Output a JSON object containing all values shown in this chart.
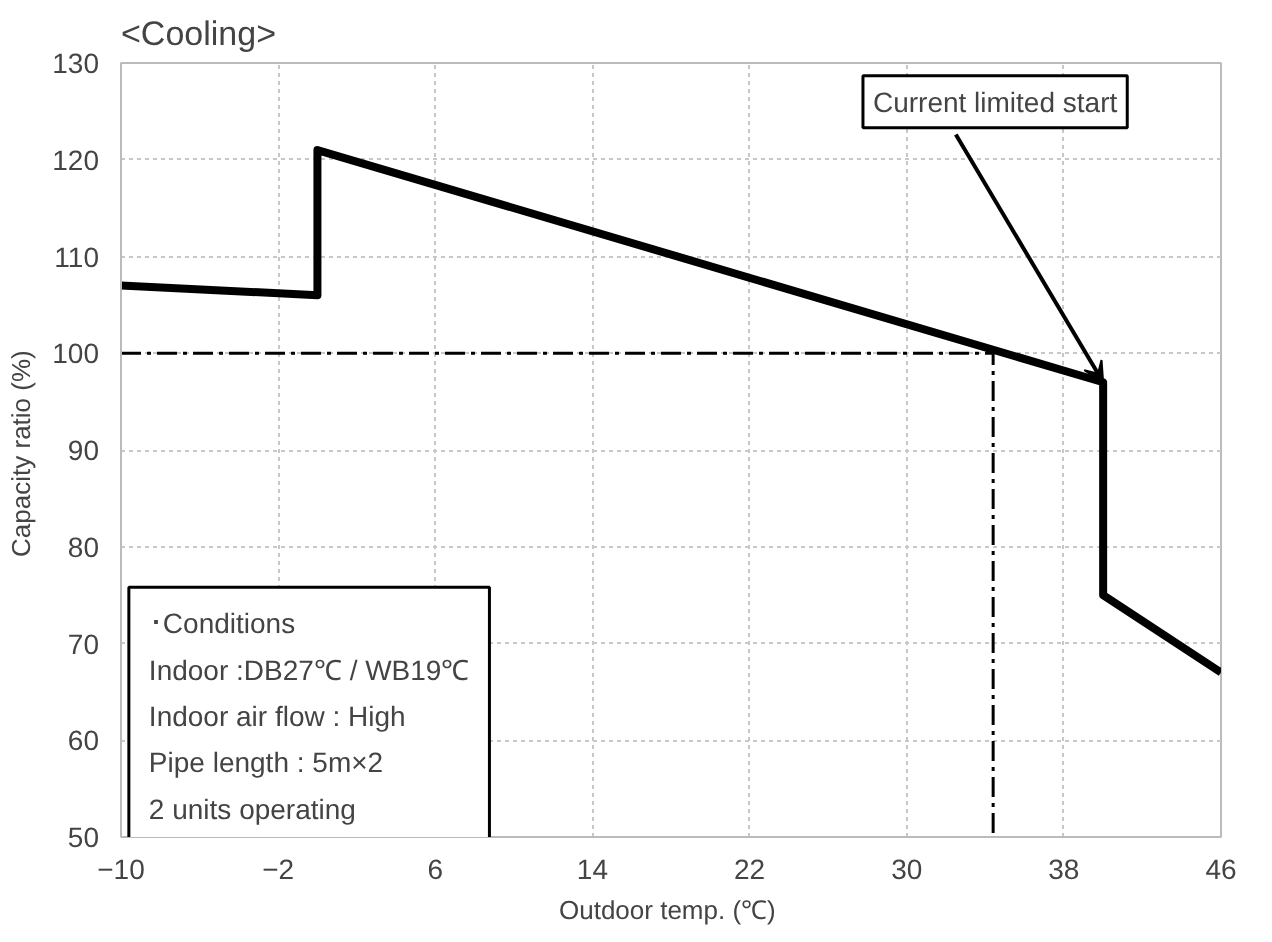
{
  "chart_data": {
    "type": "line",
    "title": "<Cooling>",
    "xlabel": "Outdoor temp.  (℃)",
    "ylabel": "Capacity ratio  (%)",
    "xlim": [
      -10,
      46
    ],
    "xticks": [
      -10,
      -2,
      6,
      14,
      22,
      30,
      38,
      46
    ],
    "ylim": [
      50,
      130
    ],
    "yticks": [
      50,
      60,
      70,
      80,
      90,
      100,
      110,
      120,
      130
    ],
    "grid": true,
    "marker": "none",
    "series": [
      {
        "color": "#000000",
        "x": [
          -10,
          0,
          0,
          40,
          40,
          46
        ],
        "values": [
          107,
          106,
          121,
          97,
          75,
          67
        ],
        "line_style": "solid"
      },
      {
        "color": "#000000",
        "x": [
          -10,
          34.4,
          34.4
        ],
        "values": [
          100,
          100,
          50
        ],
        "line_style": "dashed"
      }
    ],
    "annotations": [
      {
        "text": "Current limited start",
        "x": 40,
        "y": 97
      },
      "･Conditions",
      "Indoor :DB27℃ / WB19℃",
      "Indoor air flow : High",
      "Pipe length : 5m×2",
      "2 units operating"
    ]
  }
}
